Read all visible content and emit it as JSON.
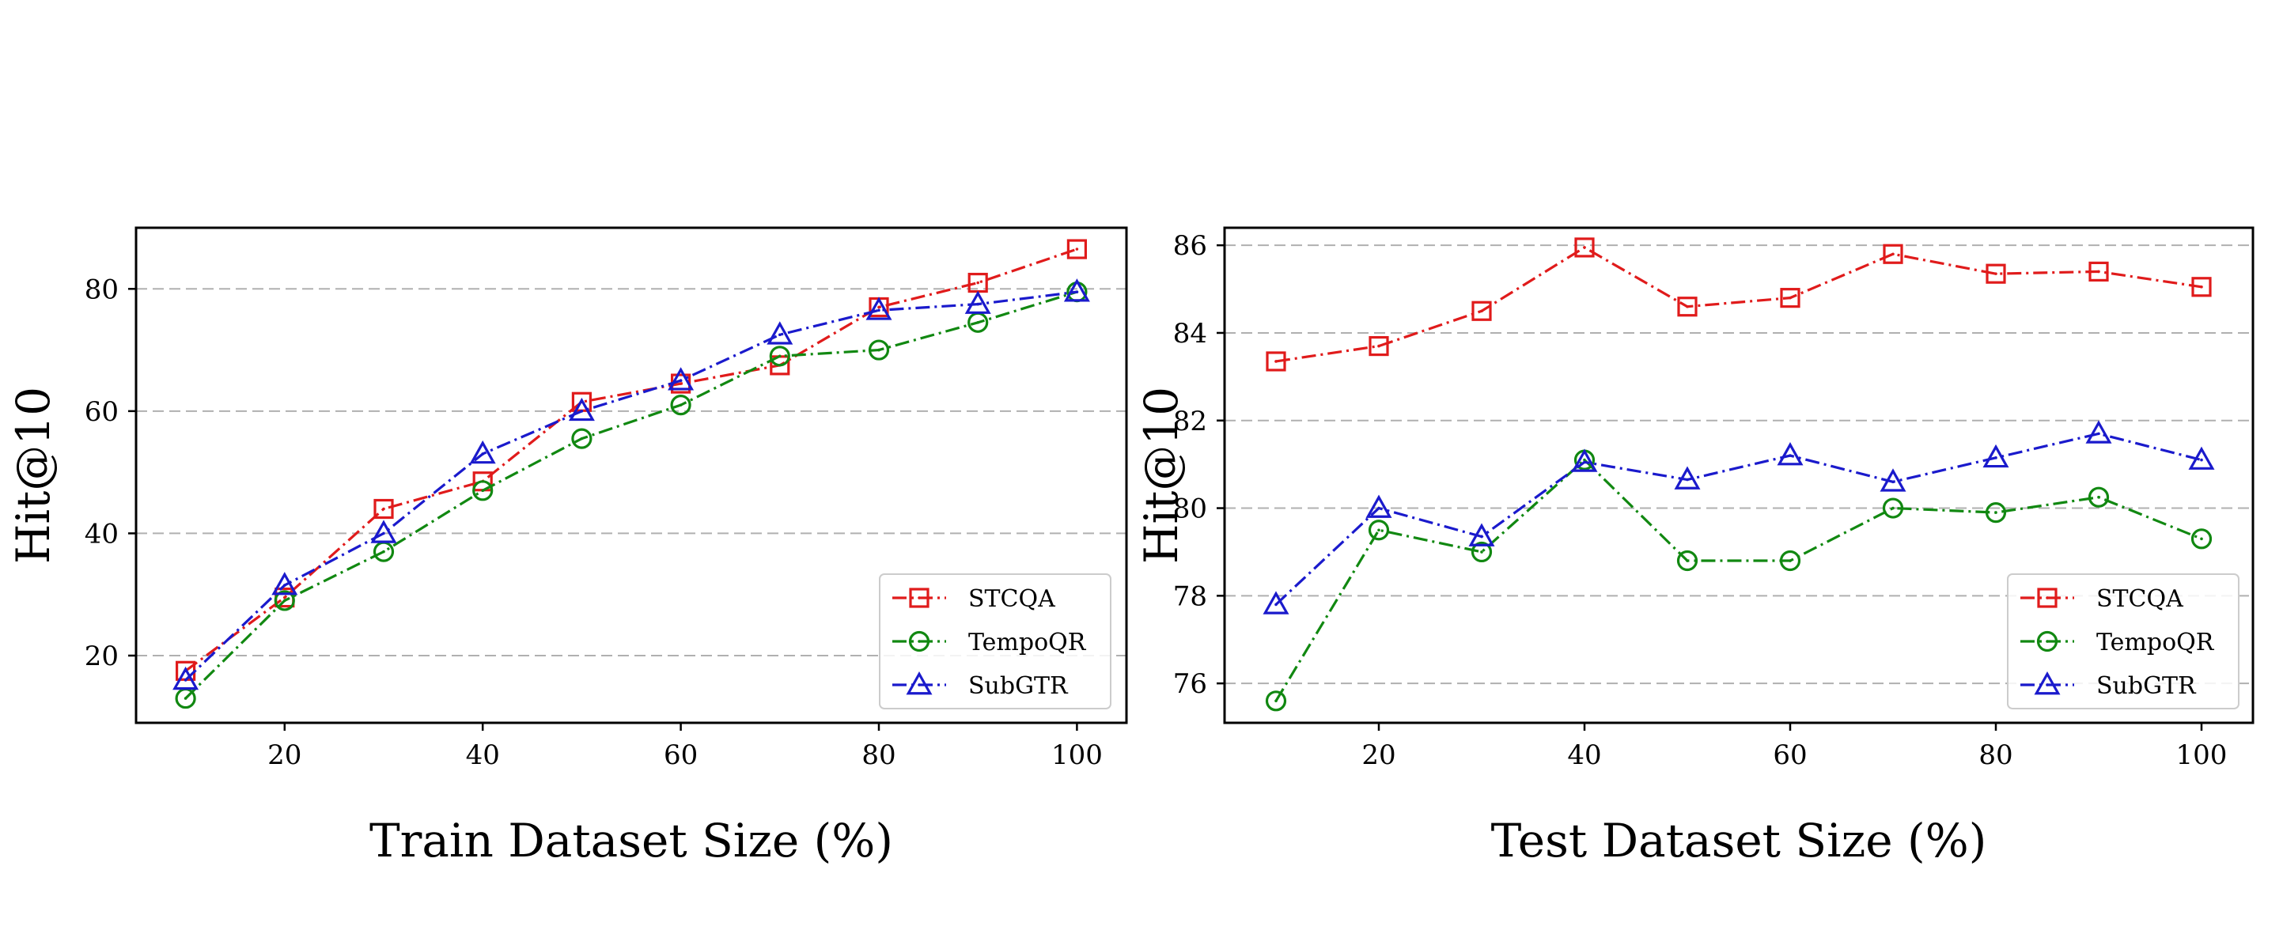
{
  "colors": {
    "STCQA": "#e01b1b",
    "TempoQR": "#118811",
    "SubGTR": "#1a1acc",
    "grid": "#b0b0b0",
    "frame": "#000000"
  },
  "chart_data": [
    {
      "type": "line",
      "xlabel": "Train Dataset Size (%)",
      "ylabel": "Hit@10",
      "xlim": [
        5,
        105
      ],
      "ylim": [
        9,
        90
      ],
      "xticks": [
        20,
        40,
        60,
        80,
        100
      ],
      "yticks": [
        20,
        40,
        60,
        80
      ],
      "grid": "y-dashed",
      "legend": "lower-right",
      "x": [
        10,
        20,
        30,
        40,
        50,
        60,
        70,
        80,
        90,
        100
      ],
      "series": [
        {
          "name": "STCQA",
          "marker": "square",
          "values": [
            17.5,
            29.5,
            44.0,
            48.5,
            61.5,
            64.5,
            67.5,
            77.0,
            81.0,
            86.5
          ]
        },
        {
          "name": "TempoQR",
          "marker": "circle",
          "values": [
            13.0,
            29.0,
            37.0,
            47.0,
            55.5,
            61.0,
            69.0,
            70.0,
            74.5,
            79.5
          ]
        },
        {
          "name": "SubGTR",
          "marker": "triangle",
          "values": [
            16.0,
            31.5,
            40.0,
            53.0,
            60.0,
            65.0,
            72.5,
            76.5,
            77.5,
            79.5
          ]
        }
      ]
    },
    {
      "type": "line",
      "xlabel": "Test Dataset Size (%)",
      "ylabel": "Hit@10",
      "xlim": [
        5,
        105
      ],
      "ylim": [
        75.1,
        86.4
      ],
      "xticks": [
        20,
        40,
        60,
        80,
        100
      ],
      "yticks": [
        76,
        78,
        80,
        82,
        84,
        86
      ],
      "grid": "y-dashed",
      "legend": "lower-right",
      "x": [
        10,
        20,
        30,
        40,
        50,
        60,
        70,
        80,
        90,
        100
      ],
      "series": [
        {
          "name": "STCQA",
          "marker": "square",
          "values": [
            83.35,
            83.7,
            84.5,
            85.95,
            84.6,
            84.8,
            85.8,
            85.35,
            85.4,
            85.05
          ]
        },
        {
          "name": "TempoQR",
          "marker": "circle",
          "values": [
            75.6,
            79.5,
            79.0,
            81.1,
            78.8,
            78.8,
            80.0,
            79.9,
            80.25,
            79.3
          ]
        },
        {
          "name": "SubGTR",
          "marker": "triangle",
          "values": [
            77.8,
            80.0,
            79.35,
            81.05,
            80.65,
            81.2,
            80.6,
            81.15,
            81.7,
            81.1
          ]
        }
      ]
    }
  ]
}
